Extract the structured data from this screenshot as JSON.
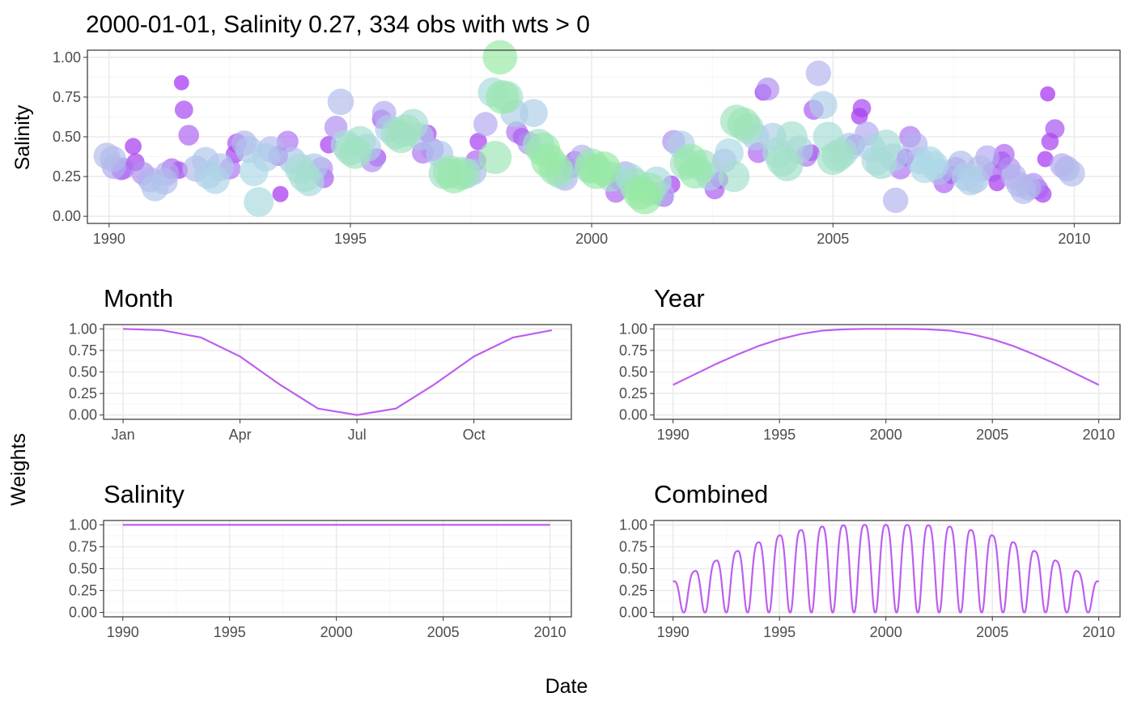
{
  "figure": {
    "ylabel": "Weights",
    "xlabel": "Date"
  },
  "colors": {
    "line": "#bd5ef0",
    "bubble_purple": "#a020f0",
    "bubble_lavender": "#b4a8ef",
    "bubble_lightblue": "#add8e6",
    "bubble_mint": "#9fe2bf",
    "bubble_green": "#90ee90"
  },
  "chart_data": [
    {
      "id": "main",
      "type": "scatter",
      "title": "2000-01-01, Salinity 0.27, 334 obs with wts > 0",
      "xlabel": "",
      "ylabel": "Salinity",
      "xlim": [
        1989.55,
        2010.95
      ],
      "ylim": [
        -0.045,
        1.045
      ],
      "x_ticks": [
        1990,
        1995,
        2000,
        2005,
        2010
      ],
      "y_ticks": [
        0,
        0.25,
        0.5,
        0.75,
        1.0
      ],
      "y_tick_labels": [
        "0.00",
        "0.25",
        "0.50",
        "0.75",
        "1.00"
      ],
      "grid": true,
      "size_encodes": "weight",
      "color_encodes": "weight",
      "points": [
        [
          1989.95,
          0.38,
          0.35
        ],
        [
          1990.08,
          0.36,
          0.35
        ],
        [
          1990.1,
          0.31,
          0.25
        ],
        [
          1990.25,
          0.29,
          0.1
        ],
        [
          1990.3,
          0.3,
          0.15
        ],
        [
          1990.5,
          0.44,
          0.03
        ],
        [
          1990.55,
          0.34,
          0.05
        ],
        [
          1990.7,
          0.27,
          0.2
        ],
        [
          1990.85,
          0.23,
          0.3
        ],
        [
          1990.95,
          0.18,
          0.4
        ],
        [
          1991.15,
          0.22,
          0.35
        ],
        [
          1991.2,
          0.27,
          0.25
        ],
        [
          1991.3,
          0.3,
          0.12
        ],
        [
          1991.45,
          0.29,
          0.04
        ],
        [
          1991.5,
          0.84,
          0.01
        ],
        [
          1991.55,
          0.67,
          0.06
        ],
        [
          1991.65,
          0.51,
          0.12
        ],
        [
          1991.8,
          0.3,
          0.35
        ],
        [
          1992.0,
          0.35,
          0.4
        ],
        [
          1992.05,
          0.26,
          0.45
        ],
        [
          1992.2,
          0.23,
          0.48
        ],
        [
          1992.3,
          0.31,
          0.42
        ],
        [
          1992.5,
          0.3,
          0.15
        ],
        [
          1992.6,
          0.39,
          0.05
        ],
        [
          1992.65,
          0.46,
          0.08
        ],
        [
          1992.8,
          0.46,
          0.3
        ],
        [
          1992.9,
          0.42,
          0.4
        ],
        [
          1993.0,
          0.28,
          0.5
        ],
        [
          1993.1,
          0.09,
          0.55
        ],
        [
          1993.25,
          0.37,
          0.45
        ],
        [
          1993.35,
          0.42,
          0.35
        ],
        [
          1993.5,
          0.38,
          0.1
        ],
        [
          1993.55,
          0.14,
          0.02
        ],
        [
          1993.7,
          0.47,
          0.15
        ],
        [
          1993.8,
          0.35,
          0.4
        ],
        [
          1993.95,
          0.3,
          0.6
        ],
        [
          1994.05,
          0.25,
          0.65
        ],
        [
          1994.15,
          0.22,
          0.55
        ],
        [
          1994.25,
          0.31,
          0.4
        ],
        [
          1994.4,
          0.3,
          0.2
        ],
        [
          1994.45,
          0.24,
          0.1
        ],
        [
          1994.55,
          0.45,
          0.04
        ],
        [
          1994.7,
          0.56,
          0.2
        ],
        [
          1994.8,
          0.72,
          0.35
        ],
        [
          1994.9,
          0.45,
          0.55
        ],
        [
          1995.0,
          0.42,
          0.7
        ],
        [
          1995.1,
          0.4,
          0.75
        ],
        [
          1995.2,
          0.47,
          0.65
        ],
        [
          1995.35,
          0.43,
          0.45
        ],
        [
          1995.45,
          0.35,
          0.2
        ],
        [
          1995.55,
          0.37,
          0.06
        ],
        [
          1995.65,
          0.61,
          0.08
        ],
        [
          1995.7,
          0.65,
          0.25
        ],
        [
          1995.8,
          0.55,
          0.45
        ],
        [
          1995.95,
          0.52,
          0.65
        ],
        [
          1996.05,
          0.5,
          0.75
        ],
        [
          1996.15,
          0.54,
          0.75
        ],
        [
          1996.3,
          0.58,
          0.6
        ],
        [
          1996.45,
          0.5,
          0.4
        ],
        [
          1996.5,
          0.4,
          0.15
        ],
        [
          1996.6,
          0.52,
          0.05
        ],
        [
          1996.7,
          0.42,
          0.2
        ],
        [
          1996.85,
          0.39,
          0.4
        ],
        [
          1996.95,
          0.27,
          0.7
        ],
        [
          1997.05,
          0.28,
          0.8
        ],
        [
          1997.15,
          0.25,
          0.85
        ],
        [
          1997.3,
          0.27,
          0.8
        ],
        [
          1997.4,
          0.27,
          0.6
        ],
        [
          1997.55,
          0.28,
          0.35
        ],
        [
          1997.6,
          0.35,
          0.12
        ],
        [
          1997.65,
          0.47,
          0.04
        ],
        [
          1997.8,
          0.58,
          0.25
        ],
        [
          1997.95,
          0.78,
          0.55
        ],
        [
          1998.0,
          0.37,
          0.8
        ],
        [
          1998.1,
          1.0,
          0.9
        ],
        [
          1998.15,
          0.75,
          0.85
        ],
        [
          1998.25,
          0.75,
          0.7
        ],
        [
          1998.4,
          0.65,
          0.45
        ],
        [
          1998.45,
          0.53,
          0.15
        ],
        [
          1998.55,
          0.5,
          0.05
        ],
        [
          1998.7,
          0.46,
          0.2
        ],
        [
          1998.8,
          0.65,
          0.45
        ],
        [
          1998.9,
          0.45,
          0.7
        ],
        [
          1999.0,
          0.42,
          0.85
        ],
        [
          1999.1,
          0.35,
          0.9
        ],
        [
          1999.25,
          0.3,
          0.85
        ],
        [
          1999.35,
          0.27,
          0.6
        ],
        [
          1999.45,
          0.24,
          0.3
        ],
        [
          1999.55,
          0.3,
          0.1
        ],
        [
          1999.65,
          0.35,
          0.08
        ],
        [
          1999.8,
          0.37,
          0.3
        ],
        [
          1999.95,
          0.3,
          0.55
        ],
        [
          2000.0,
          0.32,
          0.85
        ],
        [
          2000.1,
          0.28,
          0.9
        ],
        [
          2000.25,
          0.3,
          0.9
        ],
        [
          2000.4,
          0.25,
          0.6
        ],
        [
          2000.5,
          0.15,
          0.12
        ],
        [
          2000.55,
          0.22,
          0.03
        ],
        [
          2000.7,
          0.27,
          0.25
        ],
        [
          2000.8,
          0.24,
          0.55
        ],
        [
          2000.9,
          0.2,
          0.75
        ],
        [
          2001.0,
          0.15,
          0.9
        ],
        [
          2001.1,
          0.12,
          0.9
        ],
        [
          2001.2,
          0.17,
          0.8
        ],
        [
          2001.35,
          0.22,
          0.55
        ],
        [
          2001.45,
          0.14,
          0.3
        ],
        [
          2001.5,
          0.12,
          0.08
        ],
        [
          2001.65,
          0.2,
          0.05
        ],
        [
          2001.7,
          0.47,
          0.2
        ],
        [
          2001.85,
          0.45,
          0.45
        ],
        [
          2001.95,
          0.33,
          0.7
        ],
        [
          2002.05,
          0.35,
          0.85
        ],
        [
          2002.15,
          0.28,
          0.85
        ],
        [
          2002.3,
          0.32,
          0.7
        ],
        [
          2002.45,
          0.25,
          0.45
        ],
        [
          2002.55,
          0.17,
          0.1
        ],
        [
          2002.65,
          0.23,
          0.04
        ],
        [
          2002.75,
          0.35,
          0.25
        ],
        [
          2002.85,
          0.4,
          0.5
        ],
        [
          2002.95,
          0.25,
          0.65
        ],
        [
          2003.0,
          0.6,
          0.75
        ],
        [
          2003.15,
          0.58,
          0.8
        ],
        [
          2003.25,
          0.55,
          0.65
        ],
        [
          2003.4,
          0.5,
          0.4
        ],
        [
          2003.45,
          0.4,
          0.12
        ],
        [
          2003.55,
          0.78,
          0.03
        ],
        [
          2003.65,
          0.8,
          0.2
        ],
        [
          2003.75,
          0.5,
          0.45
        ],
        [
          2003.85,
          0.4,
          0.6
        ],
        [
          2003.95,
          0.35,
          0.7
        ],
        [
          2004.05,
          0.32,
          0.7
        ],
        [
          2004.15,
          0.5,
          0.65
        ],
        [
          2004.3,
          0.42,
          0.45
        ],
        [
          2004.45,
          0.38,
          0.15
        ],
        [
          2004.55,
          0.4,
          0.03
        ],
        [
          2004.6,
          0.67,
          0.1
        ],
        [
          2004.7,
          0.9,
          0.3
        ],
        [
          2004.8,
          0.7,
          0.45
        ],
        [
          2004.9,
          0.5,
          0.6
        ],
        [
          2005.0,
          0.36,
          0.7
        ],
        [
          2005.1,
          0.38,
          0.7
        ],
        [
          2005.2,
          0.4,
          0.6
        ],
        [
          2005.35,
          0.44,
          0.4
        ],
        [
          2005.45,
          0.45,
          0.12
        ],
        [
          2005.55,
          0.63,
          0.03
        ],
        [
          2005.6,
          0.68,
          0.06
        ],
        [
          2005.7,
          0.52,
          0.25
        ],
        [
          2005.8,
          0.43,
          0.45
        ],
        [
          2005.9,
          0.35,
          0.55
        ],
        [
          2006.0,
          0.33,
          0.6
        ],
        [
          2006.1,
          0.45,
          0.6
        ],
        [
          2006.25,
          0.37,
          0.45
        ],
        [
          2006.3,
          0.1,
          0.3
        ],
        [
          2006.4,
          0.3,
          0.15
        ],
        [
          2006.5,
          0.37,
          0.04
        ],
        [
          2006.6,
          0.5,
          0.15
        ],
        [
          2006.7,
          0.45,
          0.3
        ],
        [
          2006.8,
          0.35,
          0.4
        ],
        [
          2006.9,
          0.3,
          0.5
        ],
        [
          2007.0,
          0.35,
          0.5
        ],
        [
          2007.1,
          0.32,
          0.5
        ],
        [
          2007.2,
          0.28,
          0.35
        ],
        [
          2007.3,
          0.21,
          0.12
        ],
        [
          2007.45,
          0.26,
          0.05
        ],
        [
          2007.55,
          0.3,
          0.2
        ],
        [
          2007.65,
          0.33,
          0.35
        ],
        [
          2007.75,
          0.25,
          0.45
        ],
        [
          2007.85,
          0.22,
          0.45
        ],
        [
          2007.95,
          0.23,
          0.4
        ],
        [
          2008.05,
          0.3,
          0.35
        ],
        [
          2008.2,
          0.37,
          0.25
        ],
        [
          2008.3,
          0.28,
          0.1
        ],
        [
          2008.4,
          0.21,
          0.03
        ],
        [
          2008.5,
          0.35,
          0.06
        ],
        [
          2008.55,
          0.39,
          0.12
        ],
        [
          2008.65,
          0.3,
          0.2
        ],
        [
          2008.75,
          0.25,
          0.3
        ],
        [
          2008.85,
          0.2,
          0.3
        ],
        [
          2008.95,
          0.16,
          0.35
        ],
        [
          2009.05,
          0.18,
          0.3
        ],
        [
          2009.15,
          0.2,
          0.2
        ],
        [
          2009.25,
          0.17,
          0.12
        ],
        [
          2009.35,
          0.14,
          0.04
        ],
        [
          2009.4,
          0.36,
          0.02
        ],
        [
          2009.45,
          0.77,
          0.01
        ],
        [
          2009.5,
          0.47,
          0.04
        ],
        [
          2009.6,
          0.55,
          0.08
        ],
        [
          2009.75,
          0.32,
          0.25
        ],
        [
          2009.85,
          0.3,
          0.3
        ],
        [
          2009.95,
          0.27,
          0.35
        ]
      ]
    },
    {
      "id": "month",
      "type": "line",
      "title": "Month",
      "xlim": [
        0.5,
        12.5
      ],
      "ylim": [
        -0.05,
        1.05
      ],
      "x_ticks": [
        1,
        4,
        7,
        10
      ],
      "x_tick_labels": [
        "Jan",
        "Apr",
        "Jul",
        "Oct"
      ],
      "y_ticks": [
        0,
        0.25,
        0.5,
        0.75,
        1.0
      ],
      "y_tick_labels": [
        "0.00",
        "0.25",
        "0.50",
        "0.75",
        "1.00"
      ],
      "x": [
        1,
        2,
        3,
        4,
        5,
        6,
        7,
        8,
        9,
        10,
        11,
        12
      ],
      "y": [
        1.0,
        0.985,
        0.9,
        0.68,
        0.36,
        0.075,
        0.0,
        0.075,
        0.36,
        0.68,
        0.9,
        0.985
      ]
    },
    {
      "id": "year",
      "type": "line",
      "title": "Year",
      "xlim": [
        1989.1,
        2011.0
      ],
      "ylim": [
        -0.05,
        1.05
      ],
      "x_ticks": [
        1990,
        1995,
        2000,
        2005,
        2010
      ],
      "y_ticks": [
        0,
        0.25,
        0.5,
        0.75,
        1.0
      ],
      "y_tick_labels": [
        "0.00",
        "0.25",
        "0.50",
        "0.75",
        "1.00"
      ],
      "x": [
        1990,
        1991,
        1992,
        1993,
        1994,
        1995,
        1996,
        1997,
        1998,
        1999,
        2000,
        2001,
        2002,
        2003,
        2004,
        2005,
        2006,
        2007,
        2008,
        2009,
        2010
      ],
      "y": [
        0.35,
        0.47,
        0.59,
        0.7,
        0.8,
        0.88,
        0.94,
        0.98,
        0.995,
        1.0,
        1.0,
        1.0,
        0.995,
        0.98,
        0.94,
        0.88,
        0.8,
        0.7,
        0.59,
        0.47,
        0.35
      ]
    },
    {
      "id": "salinity",
      "type": "line",
      "title": "Salinity",
      "xlim": [
        1989.1,
        2011.0
      ],
      "ylim": [
        -0.05,
        1.05
      ],
      "x_ticks": [
        1990,
        1995,
        2000,
        2005,
        2010
      ],
      "y_ticks": [
        0,
        0.25,
        0.5,
        0.75,
        1.0
      ],
      "y_tick_labels": [
        "0.00",
        "0.25",
        "0.50",
        "0.75",
        "1.00"
      ],
      "x": [
        1990,
        2010
      ],
      "y": [
        1.0,
        1.0
      ]
    },
    {
      "id": "combined",
      "type": "line",
      "title": "Combined",
      "xlim": [
        1989.1,
        2011.0
      ],
      "ylim": [
        -0.05,
        1.05
      ],
      "x_ticks": [
        1990,
        1995,
        2000,
        2005,
        2010
      ],
      "y_ticks": [
        0,
        0.25,
        0.5,
        0.75,
        1.0
      ],
      "y_tick_labels": [
        "0.00",
        "0.25",
        "0.50",
        "0.75",
        "1.00"
      ],
      "series_rule": "year weight multiplied by month weight, sampled every 0.02 year from 1990 to 2010",
      "x_range": [
        1990,
        2010
      ],
      "x_step": 0.02
    }
  ]
}
